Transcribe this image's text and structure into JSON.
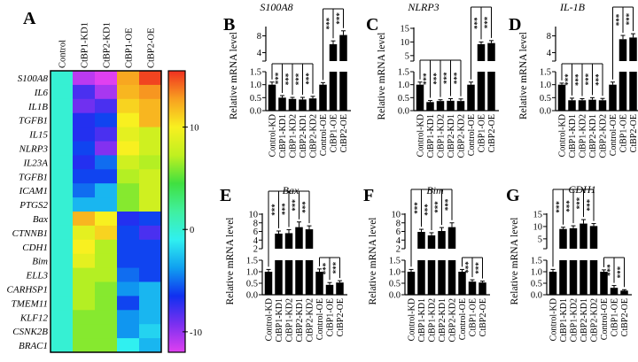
{
  "chart_data": [
    {
      "panel": "A",
      "type": "heatmap",
      "columns": [
        "Control",
        "CtBP1-KD1",
        "CtBP2-KD1",
        "CtBP1-OE",
        "CtBP2-OE"
      ],
      "rows": [
        "S100A8",
        "IL6",
        "IL1B",
        "TGFB1",
        "IL15",
        "NLRP3",
        "IL23A",
        "TGFB1",
        "ICAM1",
        "PTGS2",
        "Bax",
        "CTNNB1",
        "CDH1",
        "Bim",
        "ELL3",
        "CARHSP1",
        "TMEM11",
        "KLF12",
        "CSNK2B",
        "BRAC1"
      ],
      "values": [
        [
          0,
          -11,
          -12.5,
          12.5,
          15
        ],
        [
          0,
          -8,
          -10.5,
          12,
          13
        ],
        [
          0,
          -9,
          -8,
          11,
          12
        ],
        [
          0,
          -7,
          -6,
          10,
          12
        ],
        [
          0,
          -7,
          -8,
          9,
          8
        ],
        [
          0,
          -6,
          -9.5,
          10,
          8
        ],
        [
          0,
          -7,
          -5,
          8,
          7
        ],
        [
          0,
          -6,
          -6,
          7,
          8
        ],
        [
          0,
          -5,
          -3,
          6,
          8
        ],
        [
          0,
          -3,
          -3,
          6,
          8
        ],
        [
          0,
          12,
          10,
          -7,
          -6
        ],
        [
          0,
          9,
          11,
          -6,
          -8
        ],
        [
          0,
          10,
          7,
          -6,
          -6
        ],
        [
          0,
          9,
          7,
          -6,
          -6
        ],
        [
          0,
          7,
          7,
          -5,
          -6
        ],
        [
          0,
          7,
          6,
          -4,
          -3
        ],
        [
          0,
          7,
          6,
          -6,
          -3
        ],
        [
          0,
          6,
          6,
          -4,
          -3
        ],
        [
          0,
          6,
          6,
          -4,
          -2
        ],
        [
          0,
          6,
          6,
          -1,
          -3
        ]
      ],
      "colorbar": {
        "range": [
          -12,
          15.5
        ],
        "ticks": [
          10,
          0,
          -10
        ],
        "tick_labels": [
          "10",
          "0",
          "-10"
        ],
        "colors": [
          "#e040f0",
          "#7a30f0",
          "#1030f0",
          "#10a0f0",
          "#30f0f0",
          "#40f0a0",
          "#40e040",
          "#c0f020",
          "#f8f020",
          "#f8a020",
          "#f03020"
        ]
      }
    },
    {
      "panel": "B",
      "type": "bar",
      "title": "S100A8",
      "ylabel": "Relative mRNA level",
      "categories": [
        "Control-KD",
        "CtBP1-KD1",
        "CtBP1-KD2",
        "CtBP2-KD1",
        "CtBP2-KD2",
        "Control-OE",
        "CtBP1-OE",
        "CtBP2-OE"
      ],
      "values": [
        1.0,
        0.5,
        0.45,
        0.43,
        0.47,
        1.0,
        6.0,
        8.2
      ],
      "errors": [
        0.1,
        0.08,
        0.06,
        0.08,
        0.08,
        0.08,
        0.8,
        1.0
      ],
      "lower_axis": {
        "range": [
          0,
          1.5
        ],
        "ticks": [
          "0.0",
          "0.5",
          "1.0",
          "1.5"
        ]
      },
      "upper_axis": {
        "range": [
          2,
          10
        ],
        "ticks": [
          "4",
          "8"
        ]
      },
      "significance": [
        {
          "ref": 0,
          "targets": [
            1,
            2,
            3,
            4
          ],
          "label": "***"
        },
        {
          "ref": 5,
          "targets": [
            6,
            7
          ],
          "label": "***"
        }
      ]
    },
    {
      "panel": "C",
      "type": "bar",
      "title": "NLRP3",
      "ylabel": "Relative mRNA level",
      "categories": [
        "Control-KD",
        "CtBP1-KD1",
        "CtBP1-KD2",
        "CtBP2-KD1",
        "CtBP2-KD2",
        "Control-OE",
        "CtBP1-OE",
        "CtBP2-OE"
      ],
      "values": [
        1.0,
        0.33,
        0.37,
        0.38,
        0.37,
        1.0,
        9.2,
        9.6
      ],
      "errors": [
        0.1,
        0.06,
        0.05,
        0.08,
        0.08,
        0.1,
        0.8,
        0.9
      ],
      "lower_axis": {
        "range": [
          0,
          1.5
        ],
        "ticks": [
          "0.0",
          "0.5",
          "1.0",
          "1.5"
        ]
      },
      "upper_axis": {
        "range": [
          3,
          15
        ],
        "ticks": [
          "5",
          "10",
          "15"
        ]
      },
      "significance": [
        {
          "ref": 0,
          "targets": [
            1,
            2,
            3,
            4
          ],
          "label": "***"
        },
        {
          "ref": 5,
          "targets": [
            6,
            7
          ],
          "label": "***"
        }
      ]
    },
    {
      "panel": "D",
      "type": "bar",
      "title": "IL-1B",
      "ylabel": "Relative mRNA level",
      "categories": [
        "Control-KD",
        "CtBP1-KD1",
        "CtBP1-KD2",
        "CtBP2-KD1",
        "CtBP2-KD2",
        "Control-OE",
        "CtBP1-OE",
        "CtBP2-OE"
      ],
      "values": [
        1.0,
        0.4,
        0.4,
        0.42,
        0.4,
        1.0,
        7.2,
        7.6
      ],
      "errors": [
        0.06,
        0.08,
        0.06,
        0.08,
        0.07,
        0.1,
        0.9,
        0.9
      ],
      "lower_axis": {
        "range": [
          0,
          1.5
        ],
        "ticks": [
          "0.0",
          "0.5",
          "1.0",
          "1.5"
        ]
      },
      "upper_axis": {
        "range": [
          2,
          10
        ],
        "ticks": [
          "4",
          "8"
        ]
      },
      "significance": [
        {
          "ref": 0,
          "targets": [
            1,
            2,
            3,
            4
          ],
          "label": "***"
        },
        {
          "ref": 5,
          "targets": [
            6,
            7
          ],
          "label": "***"
        }
      ]
    },
    {
      "panel": "E",
      "type": "bar",
      "title": "Bax",
      "ylabel": "Relative mRNA level",
      "categories": [
        "Control-KD",
        "CtBP1-KD1",
        "CtBP1-KD2",
        "CtBP2-KD1",
        "CtBP2-KD2",
        "Control-OE",
        "CtBP1-OE",
        "CtBP2-OE"
      ],
      "values": [
        1.0,
        5.5,
        5.6,
        7.0,
        6.5,
        1.0,
        0.43,
        0.53
      ],
      "errors": [
        0.1,
        0.6,
        0.8,
        1.2,
        0.8,
        0.12,
        0.1,
        0.08
      ],
      "lower_axis": {
        "range": [
          0,
          1.5
        ],
        "ticks": [
          "0.0",
          "0.5",
          "1.0",
          "1.5"
        ]
      },
      "upper_axis": {
        "range": [
          2,
          10
        ],
        "ticks": [
          "2",
          "4",
          "6",
          "8",
          "10"
        ]
      },
      "significance": [
        {
          "ref": 0,
          "targets": [
            1,
            2,
            3,
            4
          ],
          "label": "***"
        },
        {
          "ref": 5,
          "targets": [
            6,
            7
          ],
          "label": "***"
        }
      ]
    },
    {
      "panel": "F",
      "type": "bar",
      "title": "Bim",
      "ylabel": "Relative mRNA level",
      "categories": [
        "Control-KD",
        "CtBP1-KD1",
        "CtBP1-KD2",
        "CtBP2-KD1",
        "CtBP2-KD2",
        "Control-OE",
        "CtBP1-OE",
        "CtBP2-OE"
      ],
      "values": [
        1.0,
        5.9,
        5.1,
        6.1,
        7.0,
        1.0,
        0.57,
        0.53
      ],
      "errors": [
        0.1,
        0.6,
        0.6,
        0.8,
        1.0,
        0.1,
        0.08,
        0.06
      ],
      "lower_axis": {
        "range": [
          0,
          1.5
        ],
        "ticks": [
          "0.0",
          "0.5",
          "1.0",
          "1.5"
        ]
      },
      "upper_axis": {
        "range": [
          2,
          10
        ],
        "ticks": [
          "2",
          "4",
          "6",
          "8",
          "10"
        ]
      },
      "significance": [
        {
          "ref": 0,
          "targets": [
            1,
            2,
            3,
            4
          ],
          "label": "***"
        },
        {
          "ref": 5,
          "targets": [
            6,
            7
          ],
          "label": "***"
        }
      ]
    },
    {
      "panel": "G",
      "type": "bar",
      "title": "CDH1",
      "ylabel": "Relative mRNA level",
      "categories": [
        "Control-KD",
        "CtBP1-KD1",
        "CtBP1-KD2",
        "CtBP2-KD1",
        "CtBP2-KD2",
        "Control-OE",
        "CtBP1-OE",
        "CtBP2-OE"
      ],
      "values": [
        1.0,
        9.0,
        9.3,
        11.2,
        10.2,
        1.0,
        0.3,
        0.18
      ],
      "errors": [
        0.1,
        0.7,
        1.0,
        1.6,
        1.0,
        0.08,
        0.1,
        0.04
      ],
      "lower_axis": {
        "range": [
          0,
          1.5
        ],
        "ticks": [
          "0.0",
          "0.5",
          "1.0",
          "1.5"
        ]
      },
      "upper_axis": {
        "range": [
          1,
          15
        ],
        "ticks": [
          "5",
          "10",
          "15"
        ]
      },
      "significance": [
        {
          "ref": 0,
          "targets": [
            1,
            2,
            3,
            4
          ],
          "label": "***"
        },
        {
          "ref": 5,
          "targets": [
            6,
            7
          ],
          "label": "***"
        }
      ]
    }
  ]
}
